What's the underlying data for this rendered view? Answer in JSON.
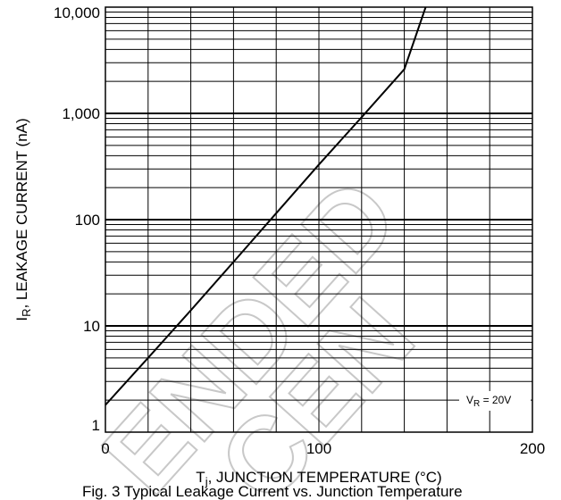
{
  "chart_data": {
    "type": "line",
    "title": "",
    "xlabel": {
      "main": "T",
      "sub": "j",
      "rest": ", JUNCTION TEMPERATURE (°C)"
    },
    "ylabel": {
      "main": "I",
      "sub": "R",
      "rest": ", LEAKAGE CURRENT (nA)"
    },
    "xlim": [
      0,
      200
    ],
    "ylim": [
      1,
      10000
    ],
    "yscale": "log",
    "grid": true,
    "x_ticks": [
      {
        "value": 0,
        "label": "0"
      },
      {
        "value": 100,
        "label": "100"
      },
      {
        "value": 200,
        "label": "200"
      }
    ],
    "y_ticks": [
      {
        "value": 1,
        "label": "1"
      },
      {
        "value": 10,
        "label": "10"
      },
      {
        "value": 100,
        "label": "100"
      },
      {
        "value": 1000,
        "label": "1,000"
      },
      {
        "value": 10000,
        "label": "10,000"
      }
    ],
    "series": [
      {
        "x": [
          0,
          20,
          40,
          60,
          80,
          100,
          120,
          140,
          150
        ],
        "y": [
          1.8,
          5.0,
          14.0,
          40.0,
          115.0,
          330.0,
          920.0,
          2600.0,
          10000.0
        ]
      }
    ],
    "annotations": [
      {
        "main": "V",
        "sub": "R",
        "rest": " = 20V"
      }
    ],
    "colors": {
      "line": "#000000",
      "grid": "#000000",
      "watermark": "#c8c8c8"
    }
  },
  "watermark": [
    "ENDED",
    "CEN"
  ],
  "caption_partial": "Fig. 3  Typical Leakage Current vs. Junction Temperature"
}
